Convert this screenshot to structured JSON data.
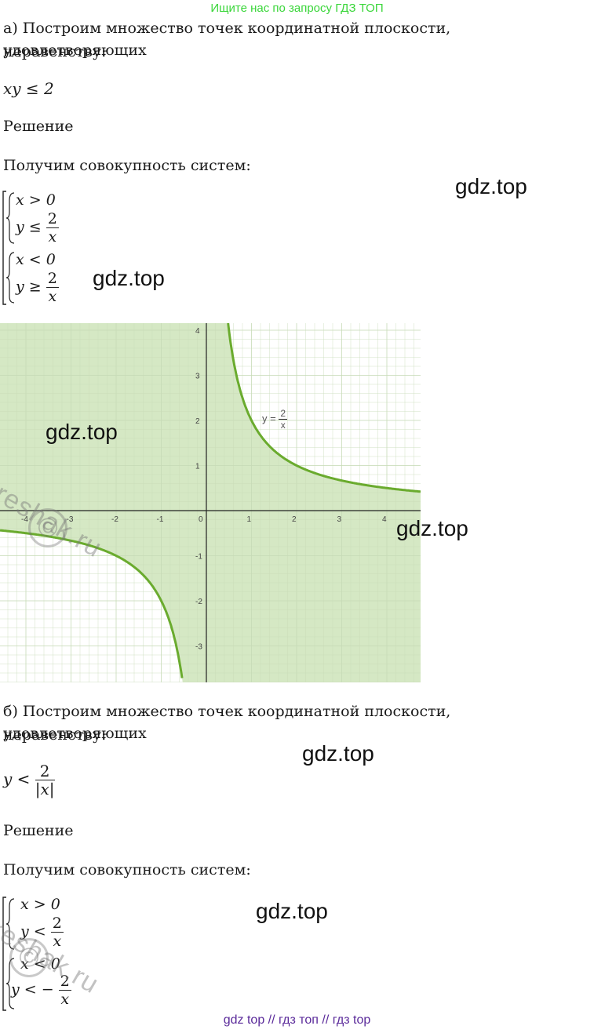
{
  "banner": "Ищите нас по запросу ГДЗ ТОП",
  "part_a": {
    "intro_line1": "а) Построим множество точек координатной плоскости, удовлетворяющих",
    "intro_line2": "неравенству:",
    "inequality": "xy ≤ 2",
    "solution": "Решение",
    "systems_intro": "Получим совокупность систем:",
    "system1": {
      "line1": "x > 0",
      "line2_lhs": "y ≤",
      "num": "2",
      "den": "x"
    },
    "system2": {
      "line1": "x < 0",
      "line2_lhs": "y ≥",
      "num": "2",
      "den": "x"
    }
  },
  "graph": {
    "curve_label": "y =",
    "curve_num": "2",
    "curve_den": "x",
    "x_ticks": [
      "-4",
      "-3",
      "-2",
      "-1",
      "0",
      "1",
      "2",
      "3",
      "4"
    ],
    "y_ticks_pos": [
      "4",
      "3",
      "2",
      "1"
    ],
    "y_ticks_neg": [
      "-1",
      "-2",
      "-3"
    ],
    "colors": {
      "fill": "#d5e8c4",
      "curve": "#6aab2e",
      "grid": "#c7dbb7",
      "axis": "#222222"
    }
  },
  "part_b": {
    "intro_line1": "б) Построим множество точек координатной плоскости, удовлетворяющих",
    "intro_line2": "неравенству:",
    "ineq_lhs": "y <",
    "ineq_num": "2",
    "ineq_den": "|x|",
    "solution": "Решение",
    "systems_intro": "Получим совокупность систем:",
    "system1": {
      "line1": "x > 0",
      "line2_lhs": "y <",
      "num": "2",
      "den": "x"
    },
    "system2": {
      "line1": "x < 0",
      "line2_lhs": "y < −",
      "num": "2",
      "den": "x"
    }
  },
  "watermarks": {
    "gdz": "gdz.top",
    "reshak": "reshak.ru",
    "copyright": "©"
  },
  "footer": {
    "link1": "gdz top",
    "sep1": "//",
    "link2": "гдз топ",
    "sep2": "//",
    "link3": "гдз top"
  }
}
